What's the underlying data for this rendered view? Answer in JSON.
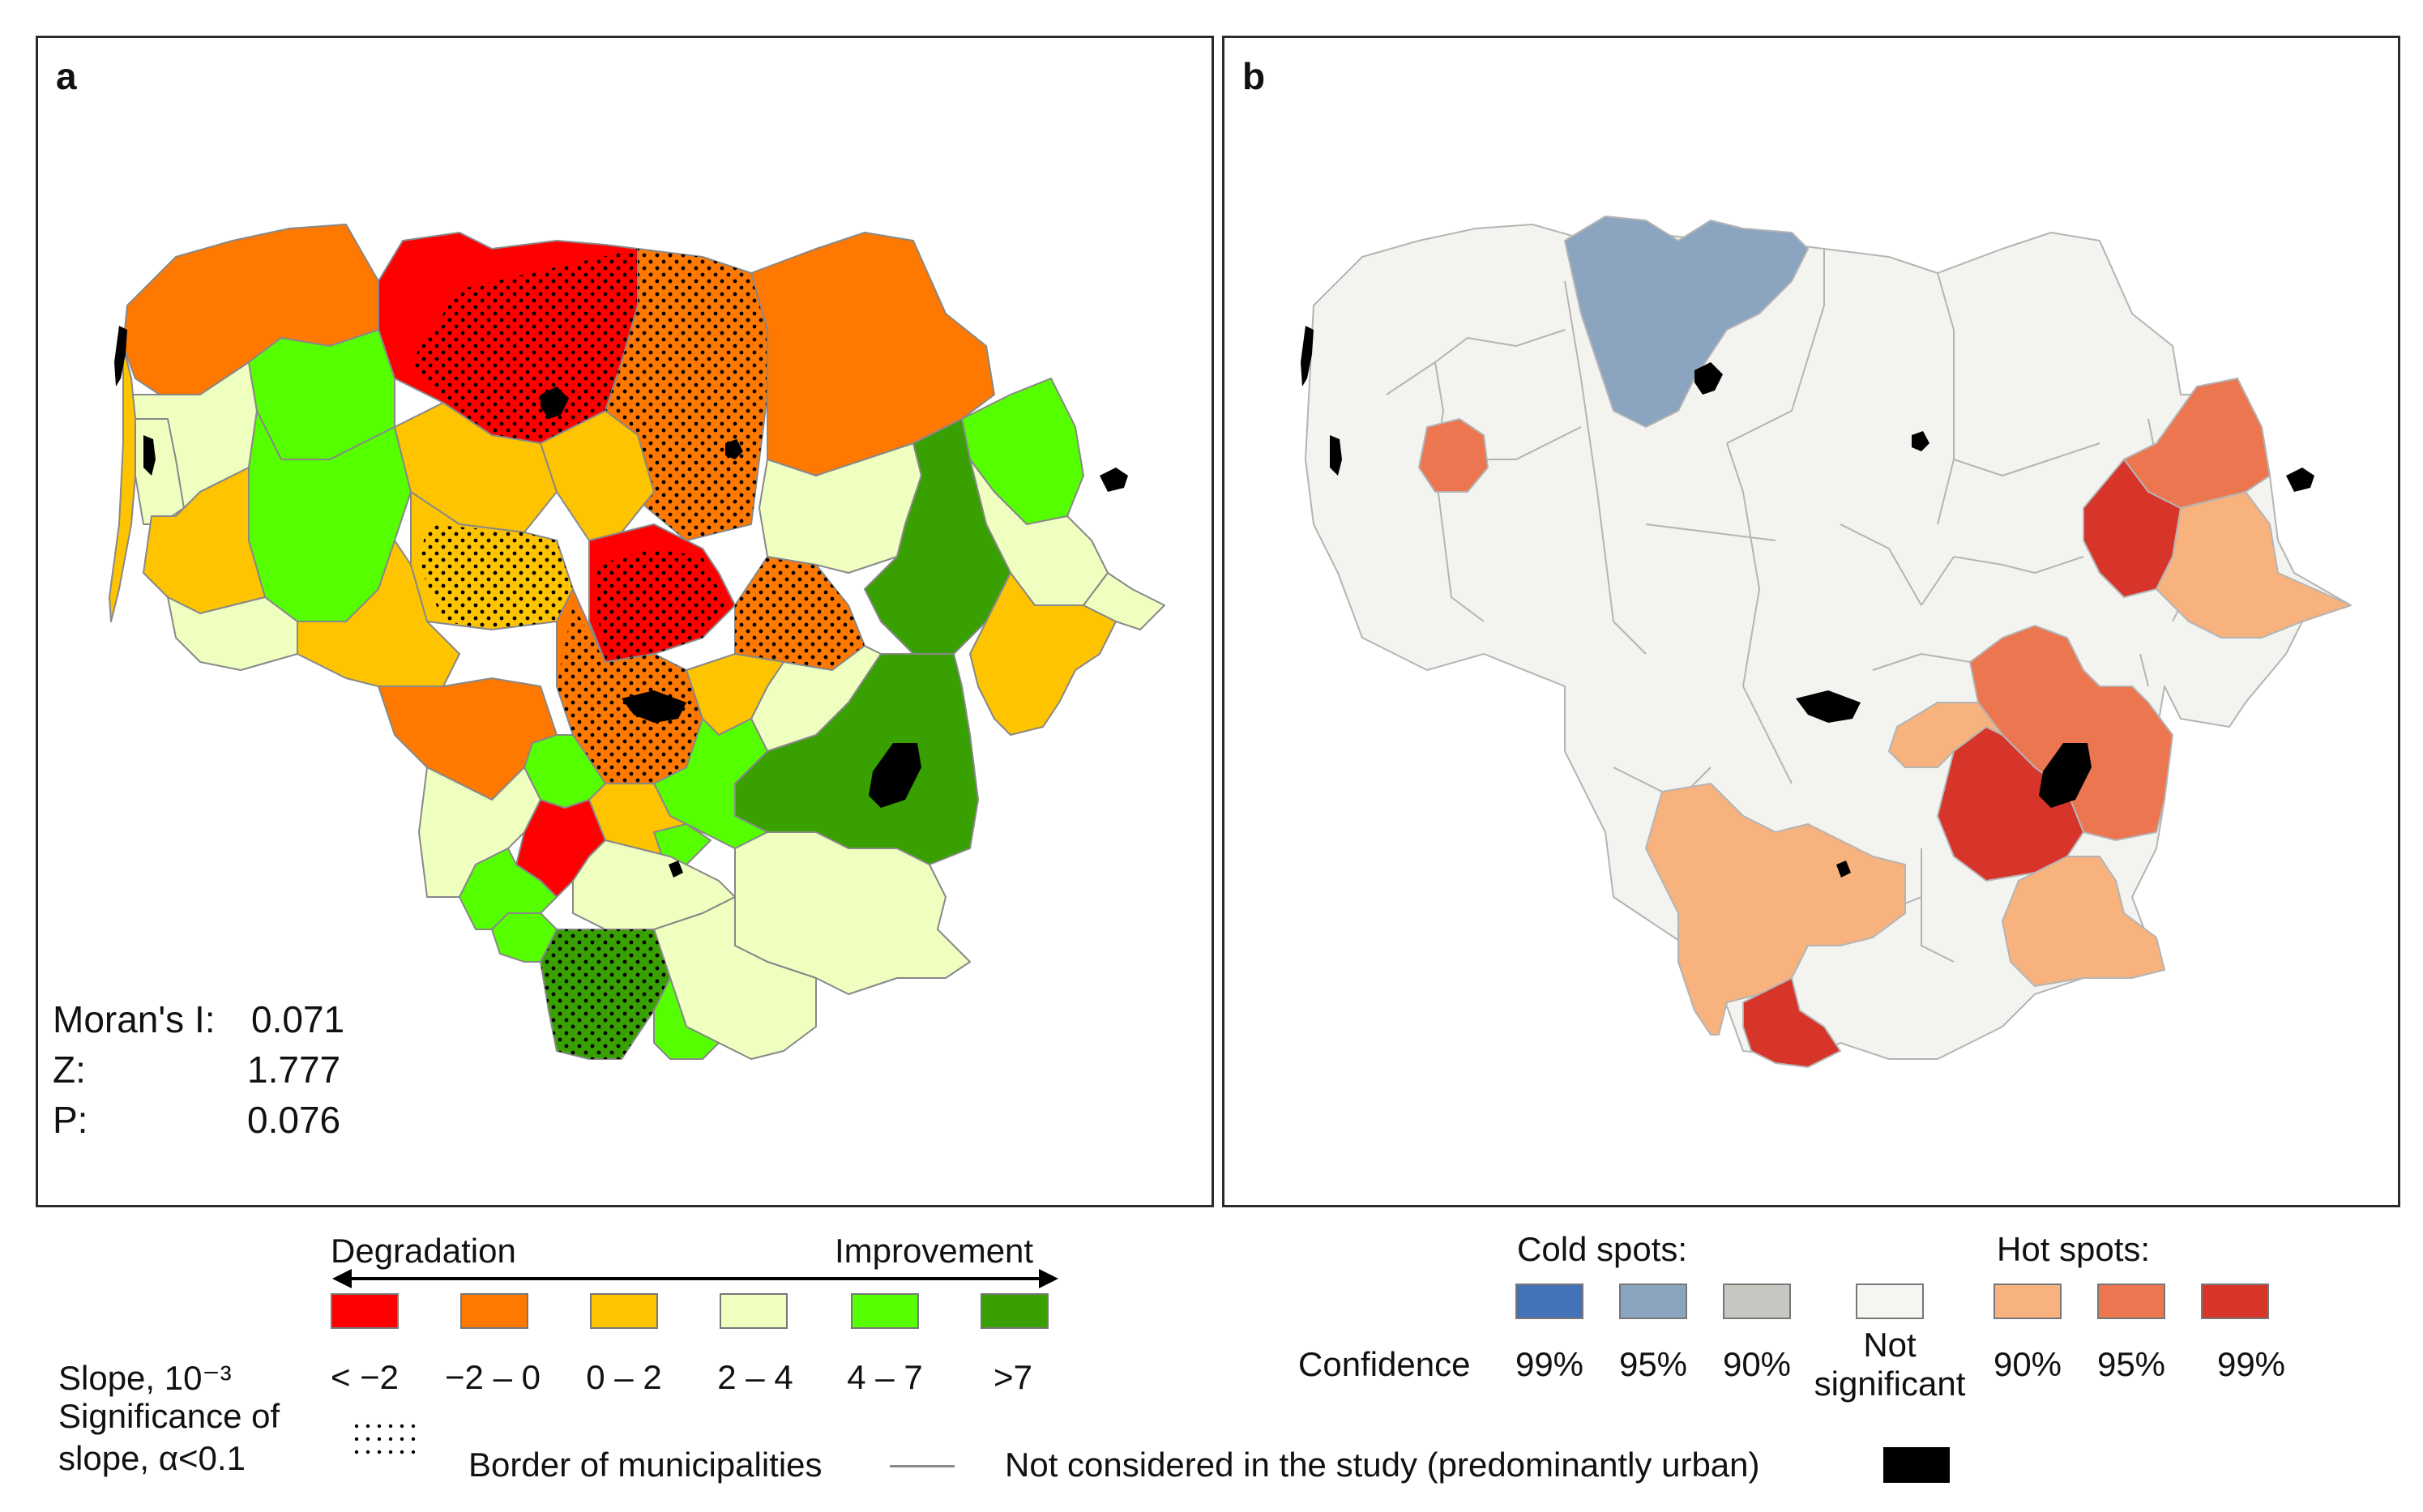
{
  "panel_a": {
    "label": "a",
    "stats": {
      "moran_label": "Moran's I:",
      "moran_value": "0.071",
      "z_label": "Z:",
      "z_value": "1.777",
      "p_label": "P:",
      "p_value": "0.076"
    }
  },
  "panel_b": {
    "label": "b"
  },
  "legend_a": {
    "degradation": "Degradation",
    "improvement": "Improvement",
    "slope_title": "Slope, 10⁻³",
    "significance_title_1": "Significance of",
    "significance_title_2": "slope, α<0.1",
    "classes": [
      {
        "label": "< −2",
        "color": "#ff0000"
      },
      {
        "label": "−2 – 0",
        "color": "#ff7800"
      },
      {
        "label": "0 – 2",
        "color": "#ffc400"
      },
      {
        "label": "2 – 4",
        "color": "#eeffc0"
      },
      {
        "label": "4 – 7",
        "color": "#55ff00"
      },
      {
        "label": ">7",
        "color": "#38a000"
      }
    ]
  },
  "legend_b": {
    "cold_title": "Cold spots:",
    "hot_title": "Hot spots:",
    "confidence_label": "Confidence",
    "classes": [
      {
        "label": "99%",
        "color": "#4472b8"
      },
      {
        "label": "95%",
        "color": "#8ba4c0"
      },
      {
        "label": "90%",
        "color": "#c4c8c0"
      },
      {
        "label": "Not",
        "label2": "significant",
        "color": "#f5f5f2"
      },
      {
        "label": "90%",
        "color": "#f7b27e"
      },
      {
        "label": "95%",
        "color": "#ec7650"
      },
      {
        "label": "99%",
        "color": "#d7342a"
      }
    ]
  },
  "legend_bottom": {
    "border_label": "Border of municipalities",
    "urban_label": "Not considered in the study (predominantly urban)"
  },
  "colors": {
    "border": "#888888",
    "urban": "#000000",
    "frame": "#2b2b2b"
  }
}
